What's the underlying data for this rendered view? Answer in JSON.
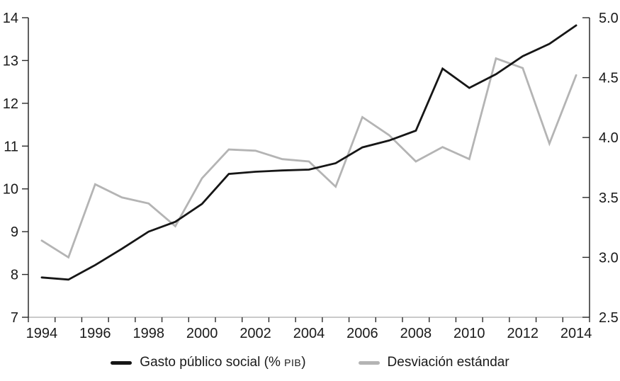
{
  "chart_data": {
    "type": "line",
    "title": "",
    "xlabel": "",
    "ylabel_left": "",
    "ylabel_right": "",
    "grid": false,
    "legend_position": "bottom",
    "x": [
      1994,
      1995,
      1996,
      1997,
      1998,
      1999,
      2000,
      2001,
      2002,
      2003,
      2004,
      2005,
      2006,
      2007,
      2008,
      2009,
      2010,
      2011,
      2012,
      2013,
      2014
    ],
    "x_tick_labels": [
      1994,
      1996,
      1998,
      2000,
      2002,
      2004,
      2006,
      2008,
      2010,
      2012,
      2014
    ],
    "series": [
      {
        "name": "Gasto público social (% PIB)",
        "axis": "left",
        "color": "#161616",
        "values": [
          7.93,
          7.88,
          8.22,
          8.6,
          9.0,
          9.23,
          9.65,
          10.35,
          10.4,
          10.43,
          10.45,
          10.6,
          10.97,
          11.13,
          11.36,
          12.81,
          12.36,
          12.68,
          13.1,
          13.39,
          13.82
        ]
      },
      {
        "name": "Desviación estándar",
        "axis": "right",
        "color": "#b4b4b4",
        "values": [
          3.14,
          3.0,
          3.61,
          3.5,
          3.45,
          3.26,
          3.66,
          3.9,
          3.89,
          3.82,
          3.8,
          3.59,
          4.17,
          4.02,
          3.8,
          3.92,
          3.82,
          4.66,
          4.58,
          3.95,
          4.52
        ]
      }
    ],
    "left_axis": {
      "min": 7,
      "max": 14,
      "ticks": [
        7,
        8,
        9,
        10,
        11,
        12,
        13,
        14
      ],
      "tick_labels": [
        "7",
        "8",
        "9",
        "10",
        "11",
        "12",
        "13",
        "14"
      ]
    },
    "right_axis": {
      "min": 2.5,
      "max": 5.0,
      "ticks": [
        2.5,
        3.0,
        3.5,
        4.0,
        4.5,
        5.0
      ],
      "tick_labels": [
        "2.5",
        "3.0",
        "3.5",
        "4.0",
        "4.5",
        "5.0"
      ]
    }
  },
  "legend": {
    "items": [
      {
        "label_main": "Gasto público social (% ",
        "label_small": "PIB",
        "label_suffix": ")"
      },
      {
        "label_main": "Desviación estándar",
        "label_small": "",
        "label_suffix": ""
      }
    ]
  },
  "colors": {
    "black_line": "#161616",
    "gray_line": "#b4b4b4",
    "side_axis": "#2b2b2b",
    "baseline": "#ababab",
    "text": "#1a1a1a"
  }
}
